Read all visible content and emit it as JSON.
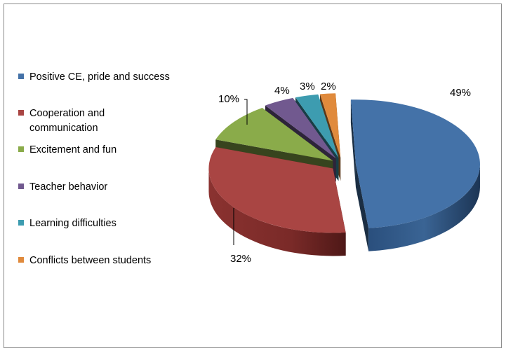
{
  "chart_data": {
    "type": "pie",
    "title": "",
    "categories": [
      "Positive CE, pride and success",
      "Cooperation and\n   communication",
      "Excitement and fun",
      "Teacher behavior",
      "Learning difficulties",
      "Conflicts between students"
    ],
    "values": [
      49,
      32,
      10,
      4,
      3,
      2
    ],
    "labels": [
      "49%",
      "32%",
      "10%",
      "4%",
      "3%",
      "2%"
    ],
    "colors": [
      "#4472a8",
      "#a94543",
      "#8aab4a",
      "#71598f",
      "#3d9cb0",
      "#e08a3c"
    ],
    "legend_position": "left",
    "exploded": true,
    "three_d": true
  }
}
